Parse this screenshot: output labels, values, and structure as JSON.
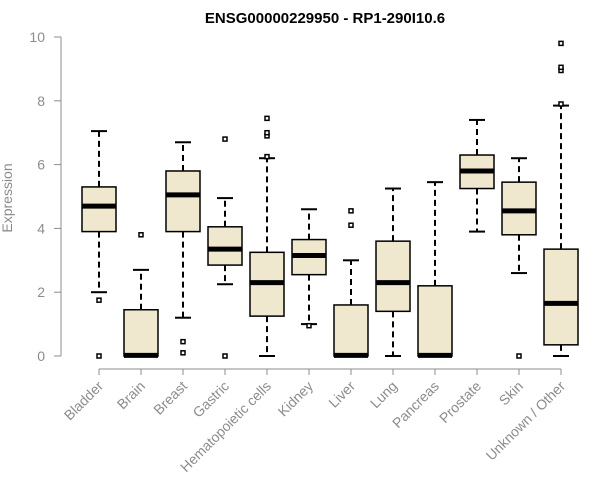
{
  "chart_data": {
    "type": "boxplot",
    "title": "ENSG00000229950 - RP1-290I10.6",
    "xlabel": "",
    "ylabel": "Expression",
    "ylim": [
      0,
      10
    ],
    "yticks": [
      0,
      2,
      4,
      6,
      8,
      10
    ],
    "grid": false,
    "colors": {
      "box_fill": "#efe8cf",
      "median": "#000000",
      "axis": "#8c8c8c",
      "tick_text": "#8c8c8c"
    },
    "categories": [
      "Bladder",
      "Brain",
      "Breast",
      "Gastric",
      "Hematopoietic cells",
      "Kidney",
      "Liver",
      "Lung",
      "Pancreas",
      "Prostate",
      "Skin",
      "Unknown / Other"
    ],
    "boxes": [
      {
        "name": "Bladder",
        "whisker_low": 2.0,
        "q1": 3.9,
        "median": 4.7,
        "q3": 5.3,
        "whisker_high": 7.05,
        "outliers": [
          0,
          1.75
        ]
      },
      {
        "name": "Brain",
        "whisker_low": 0,
        "q1": 0,
        "median": 0.02,
        "q3": 1.45,
        "whisker_high": 2.7,
        "outliers": [
          3.8
        ]
      },
      {
        "name": "Breast",
        "whisker_low": 1.2,
        "q1": 3.9,
        "median": 5.05,
        "q3": 5.8,
        "whisker_high": 6.7,
        "outliers": [
          0.1,
          0.45
        ]
      },
      {
        "name": "Gastric",
        "whisker_low": 2.25,
        "q1": 2.85,
        "median": 3.35,
        "q3": 4.05,
        "whisker_high": 4.95,
        "outliers": [
          0,
          6.8
        ]
      },
      {
        "name": "Hematopoietic cells",
        "whisker_low": 0,
        "q1": 1.25,
        "median": 2.3,
        "q3": 3.25,
        "whisker_high": 6.2,
        "outliers": [
          6.25,
          6.9,
          7.0,
          7.45
        ]
      },
      {
        "name": "Kidney",
        "whisker_low": 1.0,
        "q1": 2.55,
        "median": 3.15,
        "q3": 3.65,
        "whisker_high": 4.6,
        "outliers": [
          0.95
        ]
      },
      {
        "name": "Liver",
        "whisker_low": 0,
        "q1": 0,
        "median": 0.02,
        "q3": 1.6,
        "whisker_high": 3.0,
        "outliers": [
          4.1,
          4.55
        ]
      },
      {
        "name": "Lung",
        "whisker_low": 0,
        "q1": 1.4,
        "median": 2.3,
        "q3": 3.6,
        "whisker_high": 5.25,
        "outliers": []
      },
      {
        "name": "Pancreas",
        "whisker_low": 0,
        "q1": 0,
        "median": 0.02,
        "q3": 2.2,
        "whisker_high": 5.45,
        "outliers": []
      },
      {
        "name": "Prostate",
        "whisker_low": 3.9,
        "q1": 5.25,
        "median": 5.8,
        "q3": 6.3,
        "whisker_high": 7.4,
        "outliers": []
      },
      {
        "name": "Skin",
        "whisker_low": 2.6,
        "q1": 3.8,
        "median": 4.55,
        "q3": 5.45,
        "whisker_high": 6.2,
        "outliers": [
          0
        ]
      },
      {
        "name": "Unknown / Other",
        "whisker_low": 0,
        "q1": 0.35,
        "median": 1.65,
        "q3": 3.35,
        "whisker_high": 7.85,
        "outliers": [
          7.9,
          8.95,
          9.05,
          9.8
        ]
      }
    ]
  }
}
